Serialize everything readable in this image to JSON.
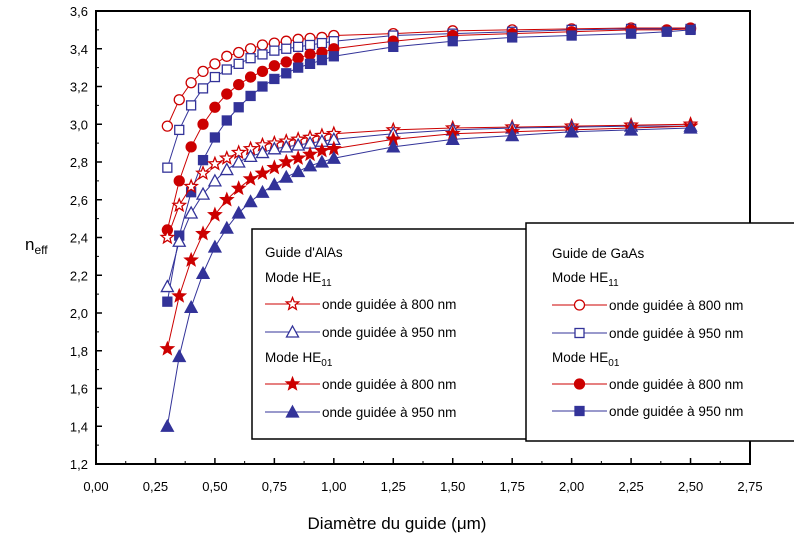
{
  "chart_data": {
    "type": "line",
    "xlabel_main": "Diamètre du guide (",
    "xlabel_mu": "μ",
    "xlabel_unit": "m)",
    "ylabel_main": "n",
    "ylabel_sub": "eff",
    "xlim": [
      0,
      2.75
    ],
    "ylim": [
      1.2,
      3.6
    ],
    "xticks": [
      "0,00",
      "0,25",
      "0,50",
      "0,75",
      "1,00",
      "1,25",
      "1,50",
      "1,75",
      "2,00",
      "2,25",
      "2,50",
      "2,75"
    ],
    "yticks": [
      "1,2",
      "1,4",
      "1,6",
      "1,8",
      "2,0",
      "2,2",
      "2,4",
      "2,6",
      "2,8",
      "3,0",
      "3,2",
      "3,4",
      "3,6"
    ],
    "legend_left": {
      "title": "Guide d'AlAs",
      "mode1_main": "Mode HE",
      "mode1_sub": "11",
      "mode2_main": "Mode HE",
      "mode2_sub": "01",
      "entries": [
        "onde guidée à 800 nm",
        "onde guidée à 950 nm",
        "onde guidée à 800 nm",
        "onde guidée à 950 nm"
      ]
    },
    "legend_right": {
      "title": "Guide de GaAs",
      "mode1_main": "Mode HE",
      "mode1_sub": "11",
      "mode2_main": "Mode HE",
      "mode2_sub": "01",
      "entries": [
        "onde guidée à 800 nm",
        "onde guidée à 950 nm",
        "onde guidée à 800 nm",
        "onde guidée à 950 nm"
      ]
    },
    "colors": {
      "red": "#cc0000",
      "blue": "#333399"
    },
    "series": [
      {
        "id": "gaas_he11_800",
        "color": "red",
        "marker": "circle",
        "filled": false,
        "x": [
          0.3,
          0.35,
          0.4,
          0.45,
          0.5,
          0.55,
          0.6,
          0.65,
          0.7,
          0.75,
          0.8,
          0.85,
          0.9,
          0.95,
          1.0,
          1.25,
          1.5,
          1.75,
          2.0,
          2.25,
          2.5
        ],
        "y": [
          2.99,
          3.13,
          3.22,
          3.28,
          3.32,
          3.36,
          3.38,
          3.4,
          3.42,
          3.43,
          3.44,
          3.45,
          3.455,
          3.46,
          3.47,
          3.48,
          3.495,
          3.5,
          3.505,
          3.51,
          3.51
        ]
      },
      {
        "id": "gaas_he11_950",
        "color": "blue",
        "marker": "square",
        "filled": false,
        "x": [
          0.3,
          0.35,
          0.4,
          0.45,
          0.5,
          0.55,
          0.6,
          0.65,
          0.7,
          0.75,
          0.8,
          0.85,
          0.9,
          0.95,
          1.0,
          1.25,
          1.5,
          1.75,
          2.0,
          2.25,
          2.5
        ],
        "y": [
          2.77,
          2.97,
          3.1,
          3.19,
          3.25,
          3.29,
          3.32,
          3.35,
          3.37,
          3.39,
          3.4,
          3.41,
          3.42,
          3.43,
          3.44,
          3.47,
          3.48,
          3.49,
          3.5,
          3.505,
          3.505
        ]
      },
      {
        "id": "gaas_he01_800",
        "color": "red",
        "marker": "circle",
        "filled": true,
        "x": [
          0.3,
          0.35,
          0.4,
          0.45,
          0.5,
          0.55,
          0.6,
          0.65,
          0.7,
          0.75,
          0.8,
          0.85,
          0.9,
          0.95,
          1.0,
          1.25,
          1.5,
          1.75,
          2.0,
          2.25,
          2.4,
          2.5
        ],
        "y": [
          2.44,
          2.7,
          2.88,
          3.0,
          3.09,
          3.16,
          3.21,
          3.25,
          3.28,
          3.31,
          3.33,
          3.35,
          3.37,
          3.38,
          3.4,
          3.44,
          3.47,
          3.48,
          3.49,
          3.5,
          3.5,
          3.505
        ]
      },
      {
        "id": "gaas_he01_950",
        "color": "blue",
        "marker": "square",
        "filled": true,
        "x": [
          0.3,
          0.35,
          0.4,
          0.45,
          0.5,
          0.55,
          0.6,
          0.65,
          0.7,
          0.75,
          0.8,
          0.85,
          0.9,
          0.95,
          1.0,
          1.25,
          1.5,
          1.75,
          2.0,
          2.25,
          2.4,
          2.5
        ],
        "y": [
          2.06,
          2.41,
          2.64,
          2.81,
          2.93,
          3.02,
          3.09,
          3.15,
          3.2,
          3.24,
          3.27,
          3.3,
          3.32,
          3.34,
          3.36,
          3.41,
          3.44,
          3.46,
          3.47,
          3.48,
          3.49,
          3.5
        ]
      },
      {
        "id": "alas_he11_800",
        "color": "red",
        "marker": "star",
        "filled": false,
        "x": [
          0.3,
          0.35,
          0.4,
          0.45,
          0.5,
          0.55,
          0.6,
          0.65,
          0.7,
          0.75,
          0.8,
          0.85,
          0.9,
          0.95,
          1.0,
          1.25,
          1.5,
          1.75,
          2.0,
          2.25,
          2.5
        ],
        "y": [
          2.4,
          2.57,
          2.67,
          2.74,
          2.79,
          2.82,
          2.85,
          2.87,
          2.89,
          2.9,
          2.91,
          2.92,
          2.93,
          2.94,
          2.95,
          2.97,
          2.98,
          2.985,
          2.99,
          2.995,
          3.0
        ]
      },
      {
        "id": "alas_he11_950",
        "color": "blue",
        "marker": "triangle",
        "filled": false,
        "x": [
          0.3,
          0.35,
          0.4,
          0.45,
          0.5,
          0.55,
          0.6,
          0.65,
          0.7,
          0.75,
          0.8,
          0.85,
          0.9,
          0.95,
          1.0,
          1.25,
          1.5,
          1.75,
          2.0,
          2.25,
          2.5
        ],
        "y": [
          2.14,
          2.38,
          2.53,
          2.63,
          2.7,
          2.76,
          2.8,
          2.83,
          2.85,
          2.87,
          2.88,
          2.89,
          2.9,
          2.91,
          2.92,
          2.95,
          2.97,
          2.98,
          2.985,
          2.99,
          2.99
        ]
      },
      {
        "id": "alas_he01_800",
        "color": "red",
        "marker": "star",
        "filled": true,
        "x": [
          0.3,
          0.35,
          0.4,
          0.45,
          0.5,
          0.55,
          0.6,
          0.65,
          0.7,
          0.75,
          0.8,
          0.85,
          0.9,
          0.95,
          1.0,
          1.25,
          1.5,
          1.75,
          2.0,
          2.25,
          2.5
        ],
        "y": [
          1.81,
          2.09,
          2.28,
          2.42,
          2.52,
          2.6,
          2.66,
          2.71,
          2.74,
          2.77,
          2.8,
          2.82,
          2.84,
          2.86,
          2.87,
          2.92,
          2.95,
          2.96,
          2.97,
          2.98,
          2.99
        ]
      },
      {
        "id": "alas_he01_950",
        "color": "blue",
        "marker": "triangle",
        "filled": true,
        "x": [
          0.3,
          0.35,
          0.4,
          0.45,
          0.5,
          0.55,
          0.6,
          0.65,
          0.7,
          0.75,
          0.8,
          0.85,
          0.9,
          0.95,
          1.0,
          1.25,
          1.5,
          1.75,
          2.0,
          2.25,
          2.5
        ],
        "y": [
          1.4,
          1.77,
          2.03,
          2.21,
          2.35,
          2.45,
          2.53,
          2.59,
          2.64,
          2.68,
          2.72,
          2.75,
          2.78,
          2.8,
          2.82,
          2.88,
          2.92,
          2.94,
          2.96,
          2.97,
          2.98
        ]
      }
    ]
  }
}
